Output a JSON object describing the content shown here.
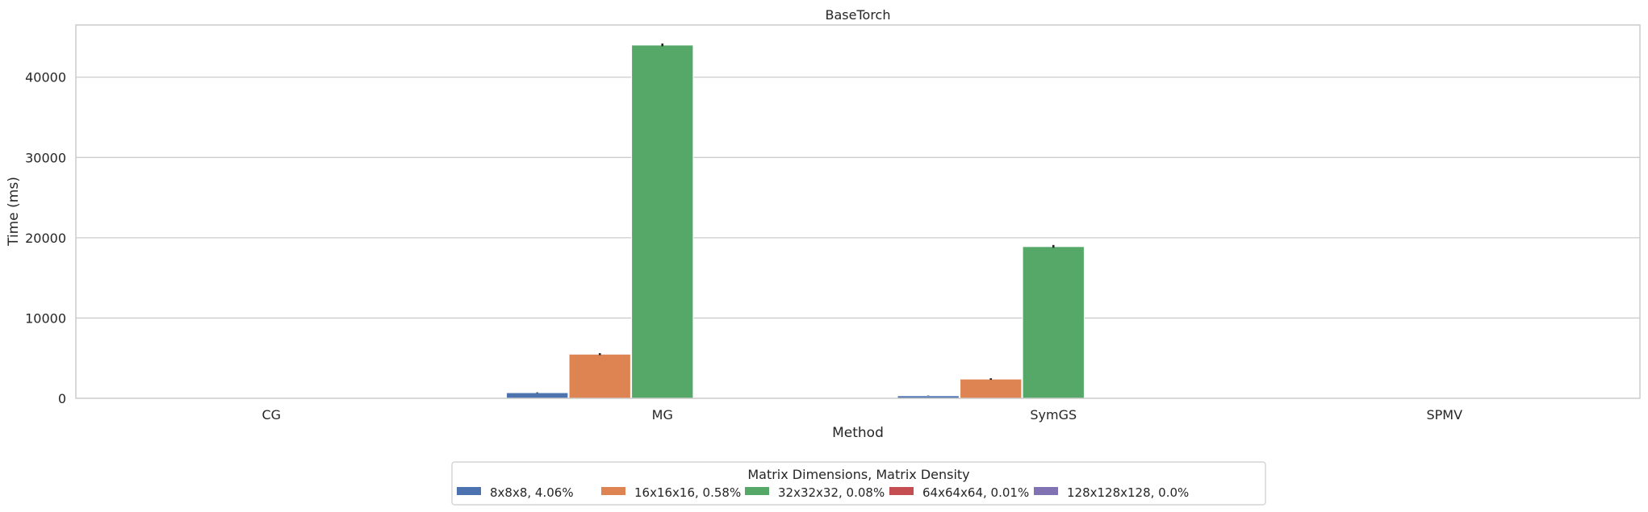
{
  "chart_data": {
    "type": "bar",
    "title": "BaseTorch",
    "xlabel": "Method",
    "ylabel": "Time (ms)",
    "categories": [
      "CG",
      "MG",
      "SymGS",
      "SPMV"
    ],
    "ylim": [
      0,
      46500
    ],
    "yticks": [
      0,
      10000,
      20000,
      30000,
      40000
    ],
    "grid": true,
    "legend": {
      "title": "Matrix Dimensions, Matrix Density",
      "placement": "bottom-center"
    },
    "series": [
      {
        "name": "8x8x8, 4.06%",
        "color": "#4c72b0",
        "values": [
          15,
          700,
          320,
          3
        ],
        "err": [
          null,
          [
            660,
            740
          ],
          [
            300,
            340
          ],
          null
        ]
      },
      {
        "name": "16x16x16, 0.58%",
        "color": "#dd8452",
        "values": [
          20,
          5500,
          2400,
          5
        ],
        "err": [
          null,
          [
            5380,
            5620
          ],
          [
            2300,
            2500
          ],
          null
        ]
      },
      {
        "name": "32x32x32, 0.08%",
        "color": "#55a868",
        "values": [
          30,
          44000,
          18900,
          8
        ],
        "err": [
          null,
          [
            43850,
            44200
          ],
          [
            18750,
            19100
          ],
          null
        ]
      },
      {
        "name": "64x64x64, 0.01%",
        "color": "#c44e52",
        "values": [
          0,
          0,
          0,
          0
        ],
        "err": [
          null,
          null,
          null,
          null
        ]
      },
      {
        "name": "128x128x128, 0.0%",
        "color": "#8172b3",
        "values": [
          0,
          0,
          0,
          0
        ],
        "err": [
          null,
          null,
          null,
          null
        ]
      }
    ]
  }
}
